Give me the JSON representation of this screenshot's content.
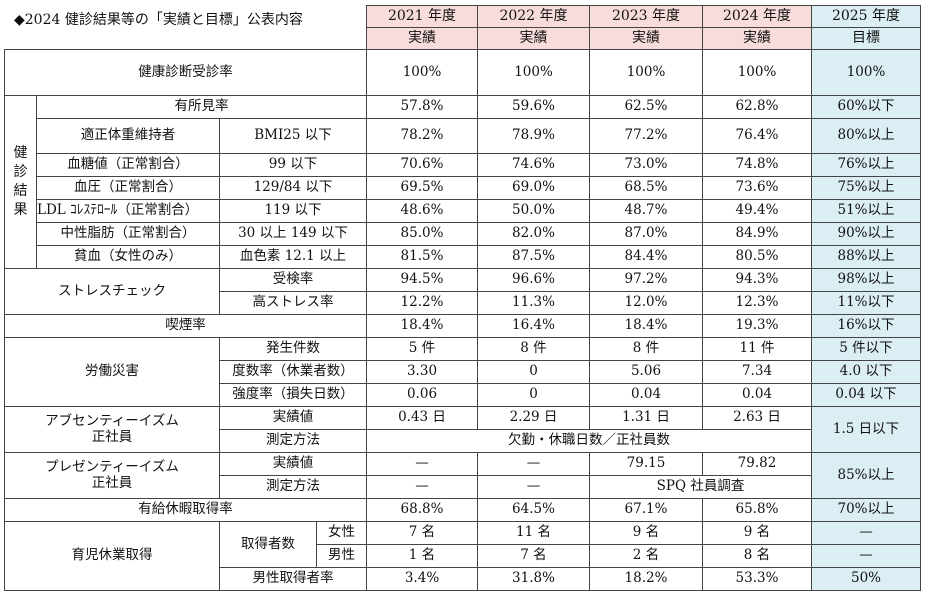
{
  "title": "◆2024 健診結果等の「実績と目標」公表内容",
  "years": [
    {
      "year": "2021 年度",
      "sub": "実績"
    },
    {
      "year": "2022 年度",
      "sub": "実績"
    },
    {
      "year": "2023 年度",
      "sub": "実績"
    },
    {
      "year": "2024 年度",
      "sub": "実績"
    },
    {
      "year": "2025 年度",
      "sub": "目標"
    }
  ],
  "checkup": {
    "label": "健康診断受診率",
    "values": [
      "100%",
      "100%",
      "100%",
      "100%",
      "100%"
    ]
  },
  "group_results": "健診結果",
  "results": [
    {
      "label": "有所見率",
      "crit": "",
      "values": [
        "57.8%",
        "59.6%",
        "62.5%",
        "62.8%",
        "60%以下"
      ]
    },
    {
      "label": "適正体重維持者",
      "crit": "BMI25 以下",
      "values": [
        "78.2%",
        "78.9%",
        "77.2%",
        "76.4%",
        "80%以上"
      ]
    },
    {
      "label": "血糖値（正常割合）",
      "crit": "99 以下",
      "values": [
        "70.6%",
        "74.6%",
        "73.0%",
        "74.8%",
        "76%以上"
      ]
    },
    {
      "label": "血圧（正常割合）",
      "crit": "129/84 以下",
      "values": [
        "69.5%",
        "69.0%",
        "68.5%",
        "73.6%",
        "75%以上"
      ]
    },
    {
      "label": "LDL ｺﾚｽﾃﾛｰﾙ（正常割合）",
      "crit": "119 以下",
      "values": [
        "48.6%",
        "50.0%",
        "48.7%",
        "49.4%",
        "51%以上"
      ]
    },
    {
      "label": "中性脂肪（正常割合）",
      "crit": "30 以上 149 以下",
      "values": [
        "85.0%",
        "82.0%",
        "87.0%",
        "84.9%",
        "90%以上"
      ]
    },
    {
      "label": "貧血（女性のみ）",
      "crit": "血色素 12.1 以上",
      "values": [
        "81.5%",
        "87.5%",
        "84.4%",
        "80.5%",
        "88%以上"
      ]
    }
  ],
  "stress": {
    "label": "ストレスチェック",
    "rows": [
      {
        "sub": "受検率",
        "values": [
          "94.5%",
          "96.6%",
          "97.2%",
          "94.3%",
          "98%以上"
        ]
      },
      {
        "sub": "高ストレス率",
        "values": [
          "12.2%",
          "11.3%",
          "12.0%",
          "12.3%",
          "11%以下"
        ]
      }
    ]
  },
  "smoking": {
    "label": "喫煙率",
    "values": [
      "18.4%",
      "16.4%",
      "18.4%",
      "19.3%",
      "16%以下"
    ]
  },
  "accident": {
    "label": "労働災害",
    "rows": [
      {
        "sub": "発生件数",
        "values": [
          "5 件",
          "8 件",
          "8 件",
          "11 件",
          "5 件以下"
        ]
      },
      {
        "sub": "度数率（休業者数）",
        "values": [
          "3.30",
          "0",
          "5.06",
          "7.34",
          "4.0 以下"
        ]
      },
      {
        "sub": "強度率（損失日数）",
        "values": [
          "0.06",
          "0",
          "0.04",
          "0.04",
          "0.04 以下"
        ]
      }
    ]
  },
  "absenteeism": {
    "label1": "アブセンティーイズム",
    "label2": "正社員",
    "row1_sub": "実績値",
    "row1_values": [
      "0.43 日",
      "2.29 日",
      "1.31 日",
      "2.63 日"
    ],
    "row2_sub": "測定方法",
    "row2_method": "欠勤・休職日数／正社員数",
    "target": "1.5 日以下"
  },
  "presenteeism": {
    "label1": "プレゼンティーイズム",
    "label2": "正社員",
    "row1_sub": "実績値",
    "row1_values": [
      "—",
      "—",
      "79.15",
      "79.82"
    ],
    "row2_sub": "測定方法",
    "row2_values": [
      "—",
      "—"
    ],
    "row2_method": "SPQ 社員調査",
    "target": "85%以上"
  },
  "paid_leave": {
    "label": "有給休暇取得率",
    "values": [
      "68.8%",
      "64.5%",
      "67.1%",
      "65.8%",
      "70%以上"
    ]
  },
  "childcare": {
    "label": "育児休業取得",
    "count_label": "取得者数",
    "female": {
      "sub": "女性",
      "values": [
        "7 名",
        "11 名",
        "9 名",
        "9 名",
        "—"
      ]
    },
    "male": {
      "sub": "男性",
      "values": [
        "1 名",
        "7 名",
        "2 名",
        "8 名",
        "—"
      ]
    },
    "male_rate": {
      "sub": "男性取得者率",
      "values": [
        "3.4%",
        "31.8%",
        "18.2%",
        "53.3%",
        "50%"
      ]
    }
  }
}
